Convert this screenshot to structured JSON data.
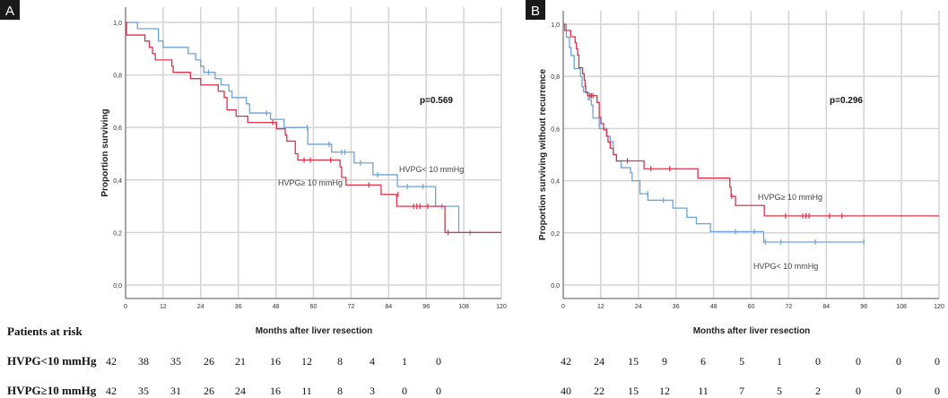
{
  "panels": [
    {
      "letter": "A",
      "ylabel": "Proportion surviving",
      "xlabel": "Months after liver resection",
      "pvalue": "p=0.569",
      "label_low": "HVPG< 10 mmHg",
      "label_high": "HVPG≥ 10 mmHg"
    },
    {
      "letter": "B",
      "ylabel": "Proportion surviving without recurrence",
      "xlabel": "Months after liver resection",
      "pvalue": "p=0.296",
      "label_low": "HVPG< 10 mmHg",
      "label_high": "HVPG≥ 10 mmHg"
    }
  ],
  "risk_table": {
    "title": "Patients at risk",
    "row_labels": [
      "HVPG<10 mmHg",
      "HVPG≥10 mmHg"
    ],
    "A": [
      [
        "42",
        "38",
        "35",
        "26",
        "21",
        "16",
        "12",
        "8",
        "4",
        "1",
        "0"
      ],
      [
        "42",
        "35",
        "31",
        "26",
        "24",
        "16",
        "11",
        "8",
        "3",
        "0",
        "0"
      ]
    ],
    "B": [
      [
        "42",
        "24",
        "15",
        "9",
        "6",
        "5",
        "1",
        "0",
        "0",
        "0",
        "0"
      ],
      [
        "40",
        "22",
        "15",
        "12",
        "11",
        "7",
        "5",
        "2",
        "0",
        "0",
        "0"
      ]
    ]
  },
  "chart_data": [
    {
      "type": "line",
      "subtype": "kaplan-meier step",
      "panel": "A",
      "xlabel": "Months after liver resection",
      "ylabel": "Proportion surviving",
      "xlim": [
        0,
        120
      ],
      "ylim": [
        0,
        1
      ],
      "xticks": [
        "0",
        "12",
        "24",
        "36",
        "48",
        "60",
        "72",
        "84",
        "96",
        "108",
        "120"
      ],
      "yticks": [
        "0,0",
        "0,2",
        "0,4",
        "0,6",
        "0,8",
        "1,0"
      ],
      "grid": true,
      "annotation": "p=0.569",
      "series": [
        {
          "name": "HVPG< 10 mmHg",
          "color": "#6fa3d8",
          "steps": [
            [
              0,
              1.0
            ],
            [
              3.8,
              0.976
            ],
            [
              10.5,
              0.929
            ],
            [
              12,
              0.905
            ],
            [
              20,
              0.881
            ],
            [
              22.4,
              0.857
            ],
            [
              24,
              0.833
            ],
            [
              25,
              0.81
            ],
            [
              28.6,
              0.786
            ],
            [
              30.5,
              0.762
            ],
            [
              33,
              0.738
            ],
            [
              34,
              0.714
            ],
            [
              38.6,
              0.69
            ],
            [
              39.6,
              0.655
            ],
            [
              46.3,
              0.631
            ],
            [
              50.6,
              0.6
            ],
            [
              58.2,
              0.536
            ],
            [
              65.8,
              0.506
            ],
            [
              73,
              0.465
            ],
            [
              79,
              0.42
            ],
            [
              86.8,
              0.375
            ],
            [
              99,
              0.3
            ],
            [
              106.4,
              0.2
            ],
            [
              120,
              0.2
            ]
          ],
          "censored": [
            [
              26.5,
              0.81
            ],
            [
              45,
              0.655
            ],
            [
              58,
              0.6
            ],
            [
              65,
              0.536
            ],
            [
              69,
              0.506
            ],
            [
              70,
              0.506
            ],
            [
              75,
              0.465
            ],
            [
              80.5,
              0.42
            ],
            [
              90,
              0.375
            ],
            [
              95,
              0.375
            ],
            [
              101,
              0.3
            ],
            [
              110,
              0.2
            ]
          ]
        },
        {
          "name": "HVPG≥ 10 mmHg",
          "color": "#e0304a",
          "steps": [
            [
              0,
              1.0
            ],
            [
              0.3,
              0.952
            ],
            [
              6.2,
              0.929
            ],
            [
              7.6,
              0.905
            ],
            [
              8.6,
              0.881
            ],
            [
              9.5,
              0.857
            ],
            [
              14.8,
              0.833
            ],
            [
              15.2,
              0.81
            ],
            [
              20.7,
              0.786
            ],
            [
              24,
              0.762
            ],
            [
              29.6,
              0.738
            ],
            [
              31.5,
              0.714
            ],
            [
              32.4,
              0.667
            ],
            [
              35.3,
              0.643
            ],
            [
              39,
              0.619
            ],
            [
              48.2,
              0.595
            ],
            [
              51,
              0.571
            ],
            [
              51.5,
              0.548
            ],
            [
              54.2,
              0.5
            ],
            [
              55,
              0.476
            ],
            [
              68.5,
              0.45
            ],
            [
              69,
              0.41
            ],
            [
              70.4,
              0.381
            ],
            [
              81.6,
              0.345
            ],
            [
              86.6,
              0.3
            ],
            [
              102,
              0.2
            ],
            [
              120,
              0.2
            ]
          ],
          "censored": [
            [
              47,
              0.619
            ],
            [
              57,
              0.476
            ],
            [
              59,
              0.476
            ],
            [
              65.5,
              0.476
            ],
            [
              77.7,
              0.381
            ],
            [
              87,
              0.345
            ],
            [
              92,
              0.3
            ],
            [
              93,
              0.3
            ],
            [
              94,
              0.3
            ],
            [
              96.5,
              0.3
            ],
            [
              103,
              0.2
            ]
          ]
        }
      ]
    },
    {
      "type": "line",
      "subtype": "kaplan-meier step",
      "panel": "B",
      "xlabel": "Months after liver resection",
      "ylabel": "Proportion surviving without recurrence",
      "xlim": [
        0,
        120
      ],
      "ylim": [
        0,
        1
      ],
      "xticks": [
        "0",
        "12",
        "24",
        "36",
        "48",
        "60",
        "72",
        "84",
        "96",
        "108",
        "120"
      ],
      "yticks": [
        "0,0",
        "0,2",
        "0,4",
        "0,6",
        "0,8",
        "1,0"
      ],
      "grid": true,
      "annotation": "p=0.296",
      "series": [
        {
          "name": "HVPG< 10 mmHg",
          "color": "#6fa3d8",
          "steps": [
            [
              0,
              1.0
            ],
            [
              1,
              0.95
            ],
            [
              2,
              0.91
            ],
            [
              2.5,
              0.88
            ],
            [
              3.5,
              0.83
            ],
            [
              5.5,
              0.8
            ],
            [
              6,
              0.76
            ],
            [
              6.5,
              0.74
            ],
            [
              8,
              0.71
            ],
            [
              9,
              0.69
            ],
            [
              9.5,
              0.64
            ],
            [
              11.5,
              0.6
            ],
            [
              14,
              0.57
            ],
            [
              15,
              0.55
            ],
            [
              16,
              0.5
            ],
            [
              17,
              0.475
            ],
            [
              18.5,
              0.45
            ],
            [
              21.5,
              0.43
            ],
            [
              22,
              0.4
            ],
            [
              24.5,
              0.35
            ],
            [
              27,
              0.325
            ],
            [
              35,
              0.295
            ],
            [
              39.5,
              0.26
            ],
            [
              42.5,
              0.235
            ],
            [
              47,
              0.205
            ],
            [
              64,
              0.165
            ],
            [
              96,
              0.165
            ]
          ],
          "censored": [
            [
              27,
              0.35
            ],
            [
              32,
              0.325
            ],
            [
              55,
              0.205
            ],
            [
              61,
              0.205
            ],
            [
              64.5,
              0.165
            ],
            [
              69.5,
              0.165
            ],
            [
              80.5,
              0.165
            ],
            [
              96,
              0.165
            ]
          ]
        },
        {
          "name": "HVPG≥ 10 mmHg",
          "color": "#e0304a",
          "steps": [
            [
              0,
              1.0
            ],
            [
              0.5,
              0.976
            ],
            [
              2.4,
              0.952
            ],
            [
              3.8,
              0.929
            ],
            [
              4.2,
              0.905
            ],
            [
              4.6,
              0.881
            ],
            [
              5,
              0.833
            ],
            [
              6.2,
              0.81
            ],
            [
              6.7,
              0.786
            ],
            [
              7,
              0.762
            ],
            [
              7.2,
              0.738
            ],
            [
              7.8,
              0.726
            ],
            [
              10.8,
              0.7
            ],
            [
              11.5,
              0.643
            ],
            [
              12,
              0.619
            ],
            [
              12.9,
              0.595
            ],
            [
              13.8,
              0.571
            ],
            [
              14.3,
              0.548
            ],
            [
              15,
              0.524
            ],
            [
              16,
              0.5
            ],
            [
              17,
              0.476
            ],
            [
              25.8,
              0.446
            ],
            [
              43,
              0.41
            ],
            [
              53.2,
              0.375
            ],
            [
              53.6,
              0.34
            ],
            [
              55,
              0.305
            ],
            [
              64.2,
              0.265
            ],
            [
              120,
              0.265
            ]
          ],
          "censored": [
            [
              8.5,
              0.726
            ],
            [
              9,
              0.726
            ],
            [
              9.5,
              0.726
            ],
            [
              20.5,
              0.476
            ],
            [
              28,
              0.446
            ],
            [
              34,
              0.446
            ],
            [
              53.8,
              0.34
            ],
            [
              71,
              0.265
            ],
            [
              76.5,
              0.265
            ],
            [
              77.5,
              0.265
            ],
            [
              78.5,
              0.265
            ],
            [
              85,
              0.265
            ],
            [
              89,
              0.265
            ]
          ]
        }
      ]
    }
  ]
}
